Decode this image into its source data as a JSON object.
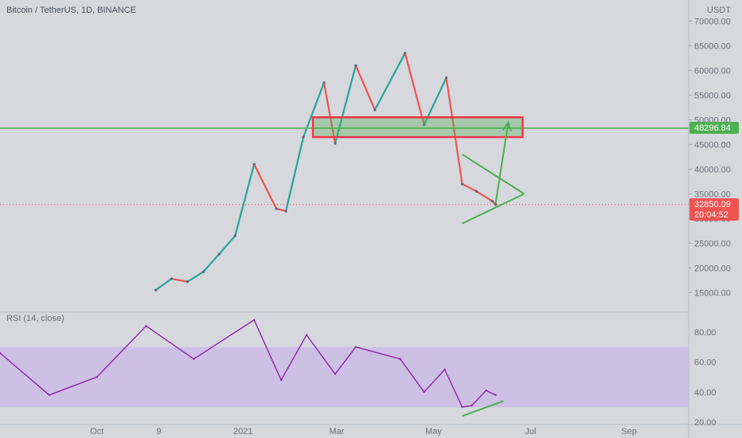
{
  "header": {
    "title": "Bitcoin / TetherUS, 1D, BINANCE",
    "currency": "USDT"
  },
  "rsi_label": "RSI (14, close)",
  "colors": {
    "up": "#26a69a",
    "down": "#ef5350",
    "annotation_green": "#4caf50",
    "annotation_red": "#f23645",
    "rsi_line": "#8e24aa",
    "rsi_band": "#c9b8e6",
    "background": "#d6d8de"
  },
  "price_tags": {
    "level": {
      "value": "48296.84",
      "price": 48296.84
    },
    "last": {
      "value": "32850.09",
      "countdown": "20:04:52",
      "price": 32850.09
    }
  },
  "chart_data": [
    {
      "type": "candlestick",
      "ylim": [
        12000,
        72000
      ],
      "yticks": [
        "15000.00",
        "20000.00",
        "25000.00",
        "30000.00",
        "35000.00",
        "40000.00",
        "45000.00",
        "50000.00",
        "55000.00",
        "60000.00",
        "65000.00",
        "70000.00"
      ],
      "xticks": [
        "Oct",
        "9",
        "2021",
        "Mar",
        "May",
        "Jul",
        "Sep"
      ],
      "series": [
        {
          "values": [
            {
              "date": "2020-11-07",
              "close": 15500
            },
            {
              "date": "2020-11-17",
              "close": 17800
            },
            {
              "date": "2020-11-27",
              "close": 17200
            },
            {
              "date": "2020-12-07",
              "close": 19200
            },
            {
              "date": "2020-12-17",
              "close": 22800
            },
            {
              "date": "2020-12-27",
              "close": 26500
            },
            {
              "date": "2021-01-08",
              "close": 41000
            },
            {
              "date": "2021-01-22",
              "close": 32000
            },
            {
              "date": "2021-01-28",
              "close": 31500
            },
            {
              "date": "2021-02-08",
              "close": 46500
            },
            {
              "date": "2021-02-21",
              "close": 57500
            },
            {
              "date": "2021-02-28",
              "close": 45200
            },
            {
              "date": "2021-03-13",
              "close": 61000
            },
            {
              "date": "2021-03-25",
              "close": 52000
            },
            {
              "date": "2021-04-13",
              "close": 63500
            },
            {
              "date": "2021-04-25",
              "close": 49000
            },
            {
              "date": "2021-05-09",
              "close": 58500
            },
            {
              "date": "2021-05-19",
              "close": 37000
            },
            {
              "date": "2021-05-28",
              "close": 35500
            },
            {
              "date": "2021-06-07",
              "close": 33500
            },
            {
              "date": "2021-06-09",
              "close": 32850
            }
          ]
        }
      ],
      "annotations": {
        "support_level": 48296.84,
        "resistance_box": {
          "from": "2021-02-14",
          "to": "2021-06-26",
          "low": 46500,
          "high": 50500
        },
        "triangle_upper": {
          "from": "2021-05-19",
          "to": "2021-06-27",
          "y0": 43000,
          "y1": 35000
        },
        "triangle_lower": {
          "from": "2021-05-19",
          "to": "2021-06-27",
          "y0": 29000,
          "y1": 35000
        },
        "projection_arrow": {
          "from": "2021-06-09",
          "to": "2021-06-17",
          "y0": 33000,
          "y1": 49500
        },
        "current_price_line": 32850.09
      }
    },
    {
      "type": "line",
      "title": "RSI (14, close)",
      "ylim": [
        20,
        90
      ],
      "yticks": [
        "20.00",
        "40.00",
        "60.00",
        "80.00"
      ],
      "band": [
        30,
        70
      ],
      "series": [
        {
          "values": [
            {
              "date": "2020-08-01",
              "value": 66
            },
            {
              "date": "2020-09-01",
              "value": 38
            },
            {
              "date": "2020-10-01",
              "value": 50
            },
            {
              "date": "2020-11-01",
              "value": 84
            },
            {
              "date": "2020-12-01",
              "value": 62
            },
            {
              "date": "2021-01-08",
              "value": 88
            },
            {
              "date": "2021-01-25",
              "value": 48
            },
            {
              "date": "2021-02-10",
              "value": 78
            },
            {
              "date": "2021-02-28",
              "value": 52
            },
            {
              "date": "2021-03-13",
              "value": 70
            },
            {
              "date": "2021-04-10",
              "value": 62
            },
            {
              "date": "2021-04-25",
              "value": 40
            },
            {
              "date": "2021-05-08",
              "value": 55
            },
            {
              "date": "2021-05-19",
              "value": 30
            },
            {
              "date": "2021-05-25",
              "value": 31
            },
            {
              "date": "2021-06-03",
              "value": 41
            },
            {
              "date": "2021-06-09",
              "value": 38
            }
          ]
        }
      ],
      "annotations": {
        "divergence_line": {
          "from": "2021-05-19",
          "to": "2021-06-14",
          "y0": 24,
          "y1": 34
        }
      }
    }
  ]
}
